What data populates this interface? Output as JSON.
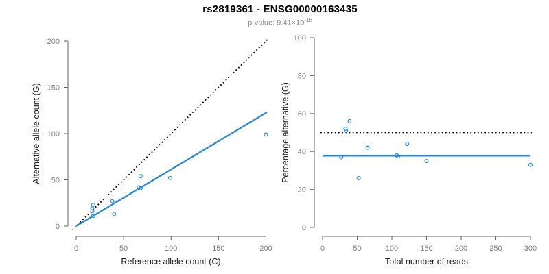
{
  "header": {
    "title": "rs2819361 - ENSG00000163435",
    "subtitle_prefix": "p-value: 9.41×10",
    "subtitle_exponent": "-16"
  },
  "colors": {
    "accent_blue": "#2287E2",
    "line_black": "#000000",
    "tick_label_gray": "#7f7f7f",
    "axis_gray": "#666666",
    "axis_title_black": "#1a1a1a",
    "subtitle_gray": "#8a8a8a",
    "background": "#ffffff"
  },
  "chart_data": [
    {
      "type": "scatter",
      "title": "",
      "xlabel": "Reference allele count (C)",
      "ylabel": "Alternative allele count (G)",
      "xlim": [
        0,
        200
      ],
      "ylim": [
        0,
        200
      ],
      "xticks": [
        0,
        50,
        100,
        150,
        200
      ],
      "yticks": [
        0,
        50,
        100,
        150,
        200
      ],
      "grid": false,
      "legend": "none",
      "point_style": "open-circle",
      "point_color": "#2287E2",
      "points": [
        [
          18,
          23
        ],
        [
          17,
          19
        ],
        [
          17,
          16
        ],
        [
          18,
          11
        ],
        [
          38,
          27
        ],
        [
          40,
          13
        ],
        [
          66,
          42
        ],
        [
          68,
          41
        ],
        [
          68,
          54
        ],
        [
          99,
          52
        ],
        [
          200,
          99
        ]
      ],
      "lines": [
        {
          "name": "identity-line",
          "style": "dotted",
          "color": "#000000",
          "from": [
            -4,
            -4
          ],
          "to": [
            203,
            203
          ]
        },
        {
          "name": "regression-line",
          "style": "solid",
          "color": "#2287E2",
          "from": [
            0,
            0
          ],
          "to": [
            201,
            123
          ]
        }
      ]
    },
    {
      "type": "scatter",
      "title": "",
      "xlabel": "Total number of reads",
      "ylabel": "Percentage alternative (G)",
      "xlim": [
        0,
        300
      ],
      "ylim": [
        0,
        100
      ],
      "xticks": [
        0,
        50,
        100,
        150,
        200,
        250,
        300
      ],
      "yticks": [
        0,
        20,
        40,
        60,
        80,
        100
      ],
      "grid": false,
      "legend": "none",
      "point_style": "open-circle",
      "point_color": "#2287E2",
      "points": [
        [
          39,
          56
        ],
        [
          33,
          52
        ],
        [
          34,
          51
        ],
        [
          27,
          37
        ],
        [
          52,
          26
        ],
        [
          65,
          42
        ],
        [
          107,
          38
        ],
        [
          109,
          37.5
        ],
        [
          122,
          44
        ],
        [
          150,
          35
        ],
        [
          300,
          33
        ]
      ],
      "lines": [
        {
          "name": "expected-50-line",
          "style": "dotted",
          "color": "#000000",
          "from": [
            -3,
            50
          ],
          "to": [
            302,
            50
          ]
        },
        {
          "name": "mean-percentage-line",
          "style": "solid",
          "color": "#2287E2",
          "from": [
            0,
            37.8
          ],
          "to": [
            300,
            37.8
          ]
        }
      ]
    }
  ]
}
